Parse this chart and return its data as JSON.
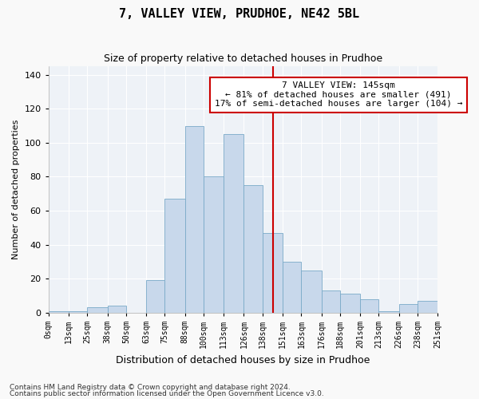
{
  "title": "7, VALLEY VIEW, PRUDHOE, NE42 5BL",
  "subtitle": "Size of property relative to detached houses in Prudhoe",
  "xlabel": "Distribution of detached houses by size in Prudhoe",
  "ylabel": "Number of detached properties",
  "bar_color": "#c8d8eb",
  "bar_edge_color": "#7aaac8",
  "background_color": "#eef2f7",
  "grid_color": "#ffffff",
  "vline_x": 145,
  "vline_color": "#cc0000",
  "bin_edges": [
    0,
    13,
    25,
    38,
    50,
    63,
    75,
    88,
    100,
    113,
    126,
    138,
    151,
    163,
    176,
    188,
    201,
    213,
    226,
    238,
    251
  ],
  "bar_heights": [
    1,
    1,
    3,
    4,
    0,
    19,
    67,
    110,
    80,
    105,
    75,
    47,
    30,
    25,
    13,
    11,
    8,
    1,
    5,
    7
  ],
  "tick_labels": [
    "0sqm",
    "13sqm",
    "25sqm",
    "38sqm",
    "50sqm",
    "63sqm",
    "75sqm",
    "88sqm",
    "100sqm",
    "113sqm",
    "126sqm",
    "138sqm",
    "151sqm",
    "163sqm",
    "176sqm",
    "188sqm",
    "201sqm",
    "213sqm",
    "226sqm",
    "238sqm",
    "251sqm"
  ],
  "annotation_text": "7 VALLEY VIEW: 145sqm\n← 81% of detached houses are smaller (491)\n17% of semi-detached houses are larger (104) →",
  "annotation_box_color": "#ffffff",
  "annotation_box_edge": "#cc0000",
  "footer_line1": "Contains HM Land Registry data © Crown copyright and database right 2024.",
  "footer_line2": "Contains public sector information licensed under the Open Government Licence v3.0.",
  "ylim": [
    0,
    145
  ],
  "yticks": [
    0,
    20,
    40,
    60,
    80,
    100,
    120,
    140
  ],
  "fig_facecolor": "#f9f9f9"
}
